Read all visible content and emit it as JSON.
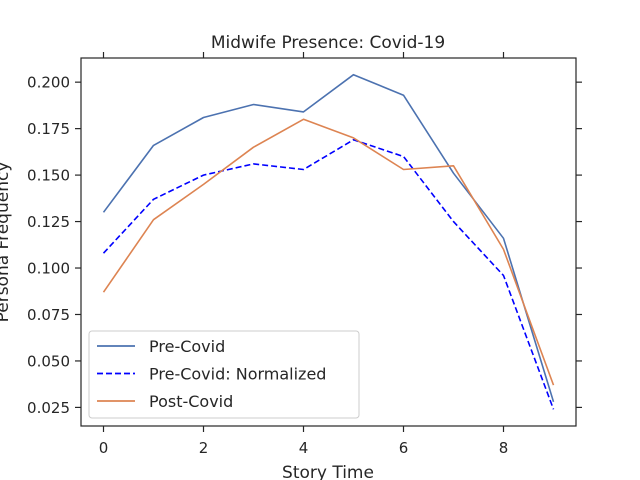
{
  "chart_data": {
    "type": "line",
    "title": "Midwife Presence: Covid-19",
    "xlabel": "Story Time",
    "ylabel": "Persona Frequency",
    "xlim": [
      -0.45,
      9.45
    ],
    "ylim": [
      0.015,
      0.213
    ],
    "xticks": [
      0,
      2,
      4,
      6,
      8
    ],
    "yticks": [
      0.025,
      0.05,
      0.075,
      0.1,
      0.125,
      0.15,
      0.175,
      0.2
    ],
    "ytick_labels": [
      "0.025",
      "0.050",
      "0.075",
      "0.100",
      "0.125",
      "0.150",
      "0.175",
      "0.200"
    ],
    "grid": false,
    "legend_position": "lower-left",
    "x": [
      0,
      1,
      2,
      3,
      4,
      5,
      6,
      7,
      8,
      9
    ],
    "series": [
      {
        "name": "Pre-Covid",
        "color": "#4c72b0",
        "dash": "solid",
        "values": [
          0.13,
          0.166,
          0.181,
          0.188,
          0.184,
          0.204,
          0.193,
          0.151,
          0.116,
          0.028
        ]
      },
      {
        "name": "Pre-Covid: Normalized",
        "color": "#0000ff",
        "dash": "dashed",
        "values": [
          0.108,
          0.137,
          0.15,
          0.156,
          0.153,
          0.169,
          0.16,
          0.125,
          0.096,
          0.024
        ]
      },
      {
        "name": "Post-Covid",
        "color": "#dd8452",
        "dash": "solid",
        "values": [
          0.087,
          0.126,
          0.145,
          0.165,
          0.18,
          0.17,
          0.153,
          0.155,
          0.11,
          0.037
        ]
      }
    ]
  }
}
